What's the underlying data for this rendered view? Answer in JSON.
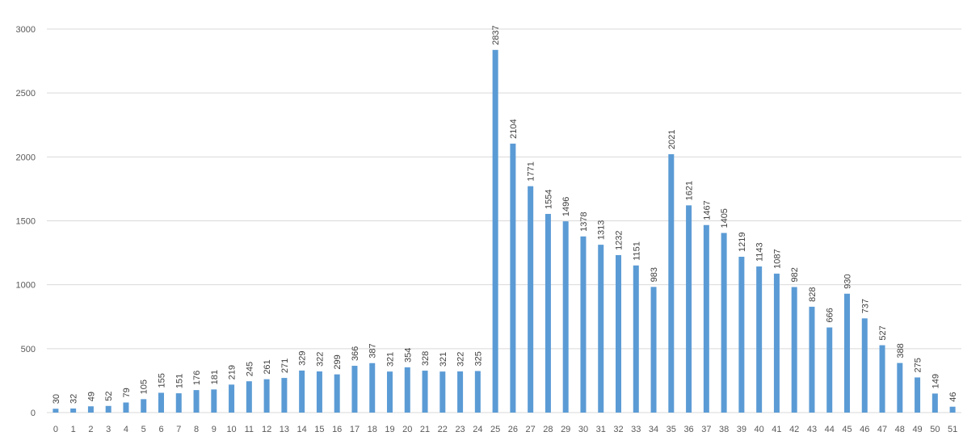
{
  "chart_data": {
    "type": "bar",
    "title": "",
    "xlabel": "",
    "ylabel": "",
    "ylim": [
      0,
      3000
    ],
    "yticks": [
      0,
      500,
      1000,
      1500,
      2000,
      2500,
      3000
    ],
    "grid": true,
    "bar_color": "#5b9bd5",
    "categories": [
      "0",
      "1",
      "2",
      "3",
      "4",
      "5",
      "6",
      "7",
      "8",
      "9",
      "10",
      "11",
      "12",
      "13",
      "14",
      "15",
      "16",
      "17",
      "18",
      "19",
      "20",
      "21",
      "22",
      "23",
      "24",
      "25",
      "26",
      "27",
      "28",
      "29",
      "30",
      "31",
      "32",
      "33",
      "34",
      "35",
      "36",
      "37",
      "38",
      "39",
      "40",
      "41",
      "42",
      "43",
      "44",
      "45",
      "46",
      "47",
      "48",
      "49",
      "50",
      "51"
    ],
    "values": [
      30,
      32,
      49,
      52,
      79,
      105,
      155,
      151,
      176,
      181,
      219,
      245,
      261,
      271,
      329,
      322,
      299,
      366,
      387,
      321,
      354,
      328,
      321,
      322,
      325,
      2837,
      2104,
      1771,
      1554,
      1496,
      1378,
      1313,
      1232,
      1151,
      983,
      2021,
      1621,
      1467,
      1405,
      1219,
      1143,
      1087,
      982,
      828,
      666,
      930,
      737,
      527,
      388,
      275,
      149,
      46
    ]
  }
}
